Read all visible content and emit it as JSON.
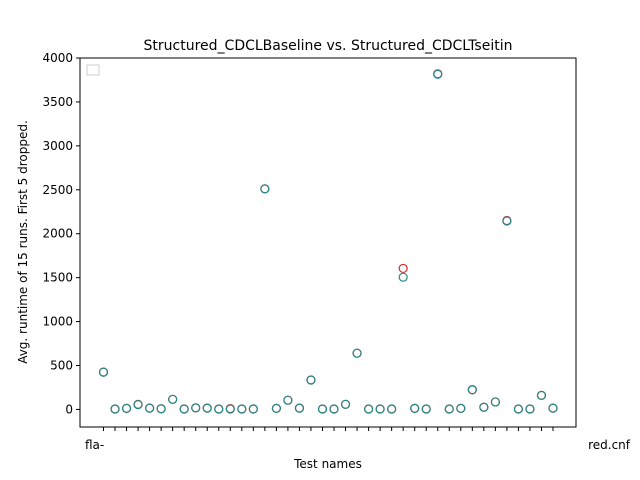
{
  "chart_data": {
    "type": "scatter",
    "title": "Structured_CDCLBaseline vs. Structured_CDCLTseitin",
    "xlabel": "Test names",
    "ylabel": "Avg. runtime of 15 runs. First 5 dropped.",
    "ylim": [
      -200,
      4000
    ],
    "yticks": [
      0,
      500,
      1000,
      1500,
      2000,
      2500,
      3000,
      3500,
      4000
    ],
    "grid": false,
    "legend": {
      "placement": "top-left",
      "entries": []
    },
    "x_tick_labels_visible": [
      "fla-",
      "red.cnf"
    ],
    "series": [
      {
        "color": "#d62728",
        "values": [
          425,
          5,
          12,
          58,
          15,
          8,
          115,
          5,
          18,
          15,
          5,
          10,
          5,
          5,
          2510,
          12,
          105,
          15,
          335,
          5,
          5,
          58,
          640,
          5,
          5,
          5,
          1605,
          12,
          5,
          3820,
          5,
          12,
          225,
          25,
          85,
          2150,
          5,
          5,
          160,
          15
        ]
      },
      {
        "color": "#1f8a8a",
        "values": [
          425,
          5,
          12,
          55,
          15,
          8,
          115,
          5,
          18,
          15,
          5,
          5,
          5,
          5,
          2510,
          12,
          105,
          15,
          335,
          5,
          5,
          58,
          640,
          5,
          5,
          5,
          1505,
          12,
          5,
          3815,
          5,
          12,
          222,
          25,
          85,
          2145,
          5,
          5,
          160,
          15
        ]
      }
    ]
  }
}
